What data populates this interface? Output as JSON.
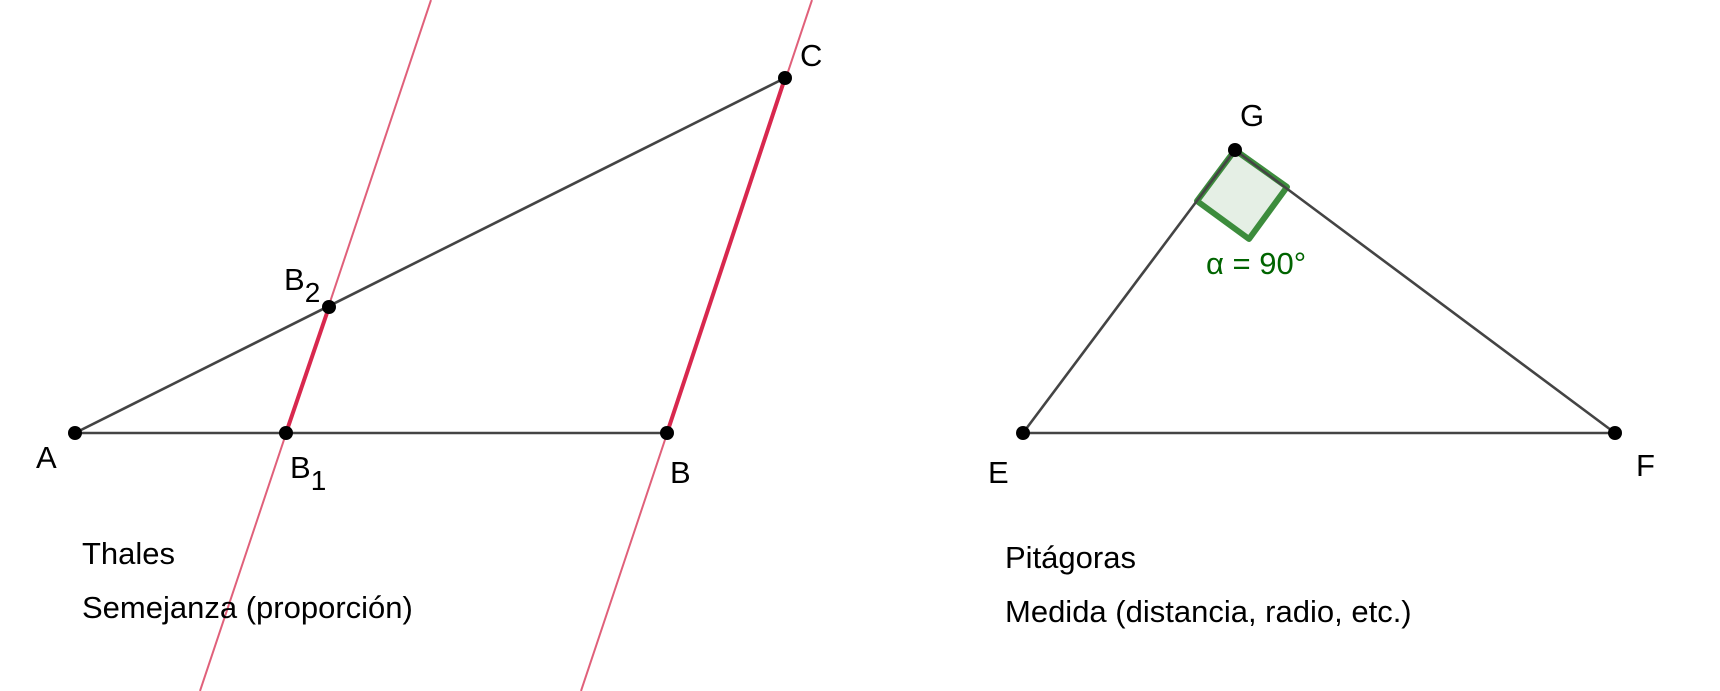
{
  "thales": {
    "points": {
      "A": {
        "name": "A"
      },
      "B1": {
        "name": "B",
        "sub": "1"
      },
      "B": {
        "name": "B"
      },
      "B2": {
        "name": "B",
        "sub": "2"
      },
      "C": {
        "name": "C"
      }
    },
    "title": "Thales",
    "subtitle": "Semejanza (proporción)"
  },
  "pitagoras": {
    "points": {
      "E": {
        "name": "E"
      },
      "F": {
        "name": "F"
      },
      "G": {
        "name": "G"
      }
    },
    "angle_label": "α = 90°",
    "title": "Pitágoras",
    "subtitle": "Medida (distancia, radio, etc.)"
  }
}
